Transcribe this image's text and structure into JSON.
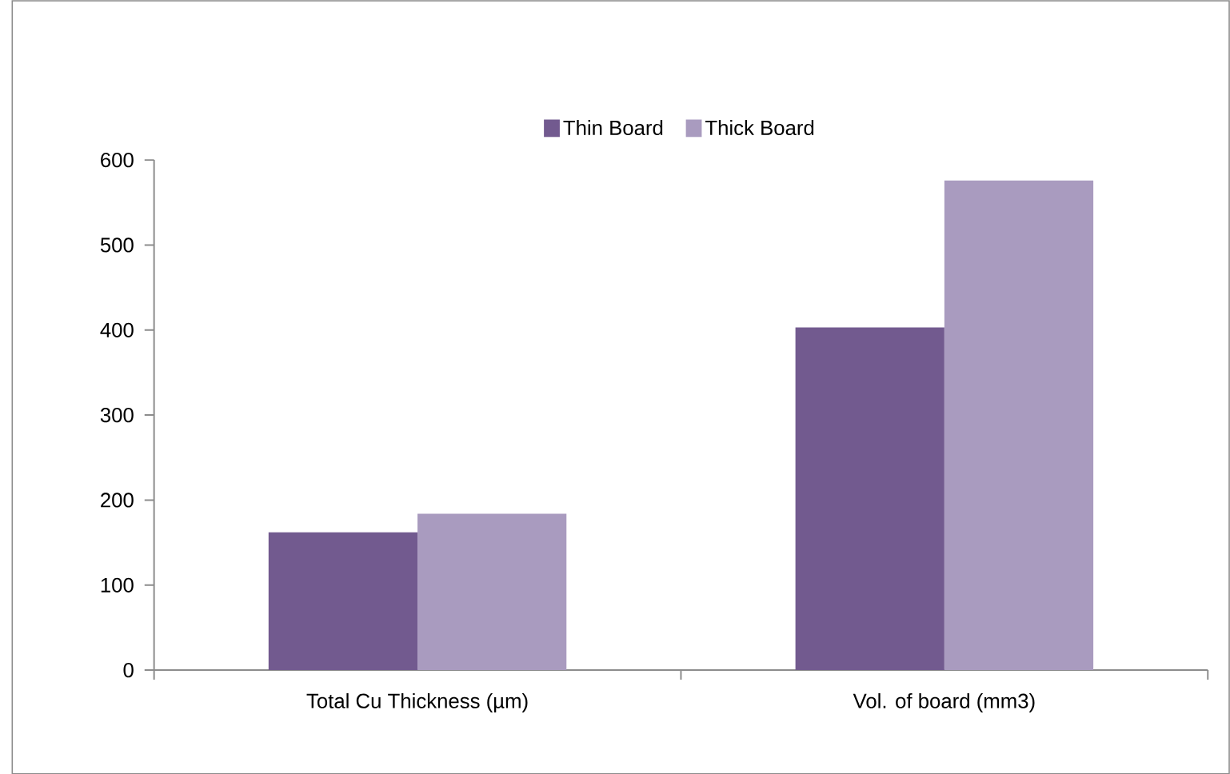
{
  "chart_data": {
    "type": "bar",
    "categories": [
      "Total Cu Thickness (µm)",
      "Vol. of board (mm3)"
    ],
    "series": [
      {
        "name": "Thin Board",
        "color": "#725a8f",
        "values": [
          162,
          403
        ]
      },
      {
        "name": "Thick Board",
        "color": "#a99bbf",
        "values": [
          184,
          576
        ]
      }
    ],
    "ylim": [
      0,
      600
    ],
    "yticks": [
      0,
      100,
      200,
      300,
      400,
      500,
      600
    ],
    "grid": false,
    "legend": "top"
  }
}
